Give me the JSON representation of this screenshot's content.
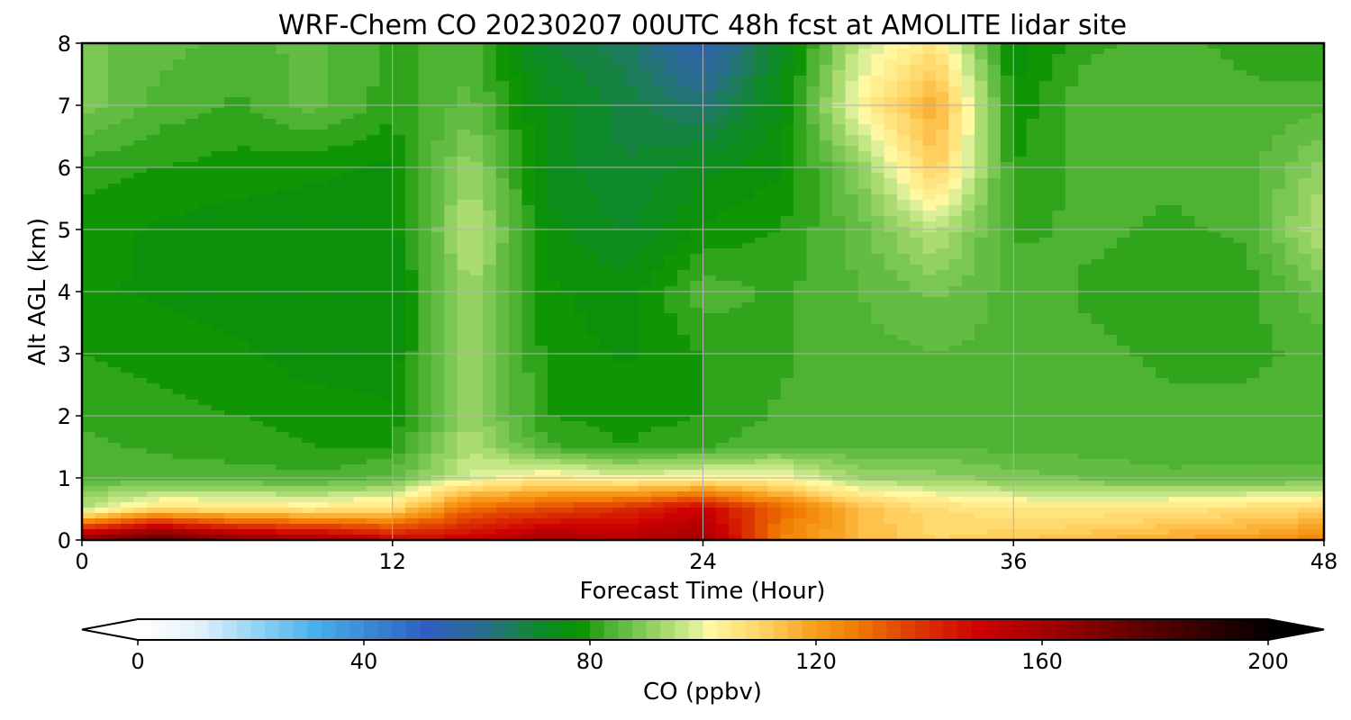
{
  "chart_data": {
    "type": "heatmap",
    "title": "WRF-Chem CO  20230207 00UTC 48h fcst at AMOLITE lidar site",
    "xlabel": "Forecast Time (Hour)",
    "ylabel": "Alt AGL (km)",
    "xlim": [
      0,
      48
    ],
    "ylim": [
      0,
      8
    ],
    "x_ticks": [
      0,
      12,
      24,
      36,
      48
    ],
    "y_ticks": [
      0,
      1,
      2,
      3,
      4,
      5,
      6,
      7,
      8
    ],
    "grid": true,
    "x": [
      0,
      3,
      6,
      9,
      12,
      15,
      18,
      21,
      24,
      27,
      30,
      33,
      36,
      39,
      42,
      45,
      48
    ],
    "y": [
      0,
      0.5,
      1,
      1.5,
      2,
      3,
      4,
      5,
      6,
      7,
      8
    ],
    "z_units": "ppbv",
    "z": [
      [
        165,
        180,
        165,
        160,
        150,
        150,
        160,
        155,
        160,
        125,
        115,
        110,
        112,
        115,
        118,
        120,
        125
      ],
      [
        95,
        108,
        106,
        105,
        108,
        130,
        135,
        140,
        150,
        130,
        115,
        108,
        105,
        105,
        106,
        108,
        110
      ],
      [
        85,
        84,
        84,
        83,
        86,
        98,
        104,
        100,
        102,
        102,
        92,
        91,
        89,
        87,
        86,
        86,
        86
      ],
      [
        83,
        82,
        81,
        80,
        80,
        95,
        83,
        80,
        82,
        85,
        85,
        85,
        84,
        84,
        83,
        84,
        84
      ],
      [
        82,
        81,
        80,
        79,
        78,
        92,
        80,
        79,
        80,
        83,
        84,
        84,
        84,
        84,
        83,
        83,
        84
      ],
      [
        80,
        79,
        78,
        76,
        76,
        92,
        79,
        77,
        80,
        82,
        84,
        85,
        84,
        83,
        82,
        82,
        83
      ],
      [
        78,
        77,
        76,
        75,
        75,
        93,
        78,
        76,
        84,
        82,
        85,
        88,
        84,
        82,
        82,
        81,
        88
      ],
      [
        79,
        77,
        76,
        76,
        76,
        96,
        76,
        72,
        78,
        80,
        86,
        96,
        82,
        83,
        82,
        83,
        96
      ],
      [
        81,
        80,
        79,
        78,
        77,
        92,
        74,
        70,
        74,
        77,
        90,
        112,
        80,
        84,
        83,
        84,
        91
      ],
      [
        89,
        84,
        82,
        86,
        81,
        86,
        74,
        69,
        64,
        75,
        102,
        118,
        78,
        85,
        84,
        83,
        84
      ],
      [
        88,
        86,
        84,
        86,
        82,
        84,
        70,
        66,
        54,
        72,
        96,
        106,
        76,
        82,
        83,
        82,
        80
      ]
    ],
    "colorbar": {
      "label": "CO  (ppbv)",
      "vmin": 0,
      "vmax": 200,
      "ticks": [
        0,
        40,
        80,
        120,
        160,
        200
      ],
      "extend": "both",
      "colors": [
        {
          "v": 0,
          "c": "#ffffff"
        },
        {
          "v": 10,
          "c": "#dff0fb"
        },
        {
          "v": 20,
          "c": "#8fd3f5"
        },
        {
          "v": 30,
          "c": "#4ab0ea"
        },
        {
          "v": 40,
          "c": "#3a86d4"
        },
        {
          "v": 50,
          "c": "#2f5ec0"
        },
        {
          "v": 60,
          "c": "#2a6e8e"
        },
        {
          "v": 70,
          "c": "#0f8a2a"
        },
        {
          "v": 77,
          "c": "#099200"
        },
        {
          "v": 82,
          "c": "#4ab12e"
        },
        {
          "v": 86,
          "c": "#6cc14a"
        },
        {
          "v": 92,
          "c": "#a6da6e"
        },
        {
          "v": 97,
          "c": "#d6ee98"
        },
        {
          "v": 100,
          "c": "#fff8a0"
        },
        {
          "v": 110,
          "c": "#ffd060"
        },
        {
          "v": 118,
          "c": "#f9a020"
        },
        {
          "v": 126,
          "c": "#ef7a00"
        },
        {
          "v": 135,
          "c": "#e04000"
        },
        {
          "v": 148,
          "c": "#cc0000"
        },
        {
          "v": 162,
          "c": "#980000"
        },
        {
          "v": 180,
          "c": "#500000"
        },
        {
          "v": 200,
          "c": "#000000"
        }
      ]
    }
  }
}
